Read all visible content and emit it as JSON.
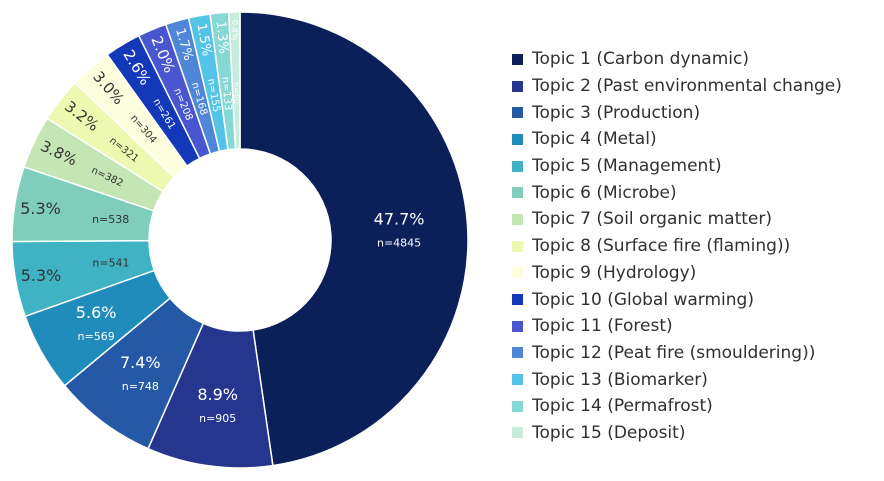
{
  "chart_data": {
    "type": "pie",
    "donut": true,
    "legend_position": "right",
    "slices": [
      {
        "label": "Topic 1 (Carbon dynamic)",
        "percent_label": "47.7%",
        "n_label": "n=4845",
        "value": 4845,
        "color": "#0b1f59"
      },
      {
        "label": "Topic 2 (Past environmental change)",
        "percent_label": "8.9%",
        "n_label": "n=905",
        "value": 905,
        "color": "#26368f"
      },
      {
        "label": "Topic 3 (Production)",
        "percent_label": "7.4%",
        "n_label": "n=748",
        "value": 748,
        "color": "#2559a5"
      },
      {
        "label": "Topic 4 (Metal)",
        "percent_label": "5.6%",
        "n_label": "n=569",
        "value": 569,
        "color": "#1f8cbc"
      },
      {
        "label": "Topic 5 (Management)",
        "percent_label": "5.3%",
        "n_label": "n=541",
        "value": 541,
        "color": "#3fb3c4"
      },
      {
        "label": "Topic 6 (Microbe)",
        "percent_label": "5.3%",
        "n_label": "n=538",
        "value": 538,
        "color": "#7fcebb"
      },
      {
        "label": "Topic 7 (Soil organic matter)",
        "percent_label": "3.8%",
        "n_label": "n=382",
        "value": 382,
        "color": "#c4e6b4"
      },
      {
        "label": "Topic 8 (Surface fire (flaming))",
        "percent_label": "3.2%",
        "n_label": "n=321",
        "value": 321,
        "color": "#edf8b1"
      },
      {
        "label": "Topic 9 (Hydrology)",
        "percent_label": "3.0%",
        "n_label": "n=304",
        "value": 304,
        "color": "#fdfede"
      },
      {
        "label": "Topic 10 (Global warming)",
        "percent_label": "2.6%",
        "n_label": "n=261",
        "value": 261,
        "color": "#1338b8"
      },
      {
        "label": "Topic 11 (Forest)",
        "percent_label": "2.0%",
        "n_label": "n=208",
        "value": 208,
        "color": "#4a55d0"
      },
      {
        "label": "Topic 12 (Peat fire (smouldering))",
        "percent_label": "1.7%",
        "n_label": "n=168",
        "value": 168,
        "color": "#4f86d8"
      },
      {
        "label": "Topic 13 (Biomarker)",
        "percent_label": "1.5%",
        "n_label": "n=155",
        "value": 155,
        "color": "#54c3e8"
      },
      {
        "label": "Topic 14 (Permafrost)",
        "percent_label": "1.3%",
        "n_label": "n=133",
        "value": 133,
        "color": "#86d8d4"
      },
      {
        "label": "Topic 15 (Deposit)",
        "percent_label": "0.8%",
        "n_label": "n=80",
        "value": 80,
        "color": "#c8ecdc"
      }
    ]
  }
}
